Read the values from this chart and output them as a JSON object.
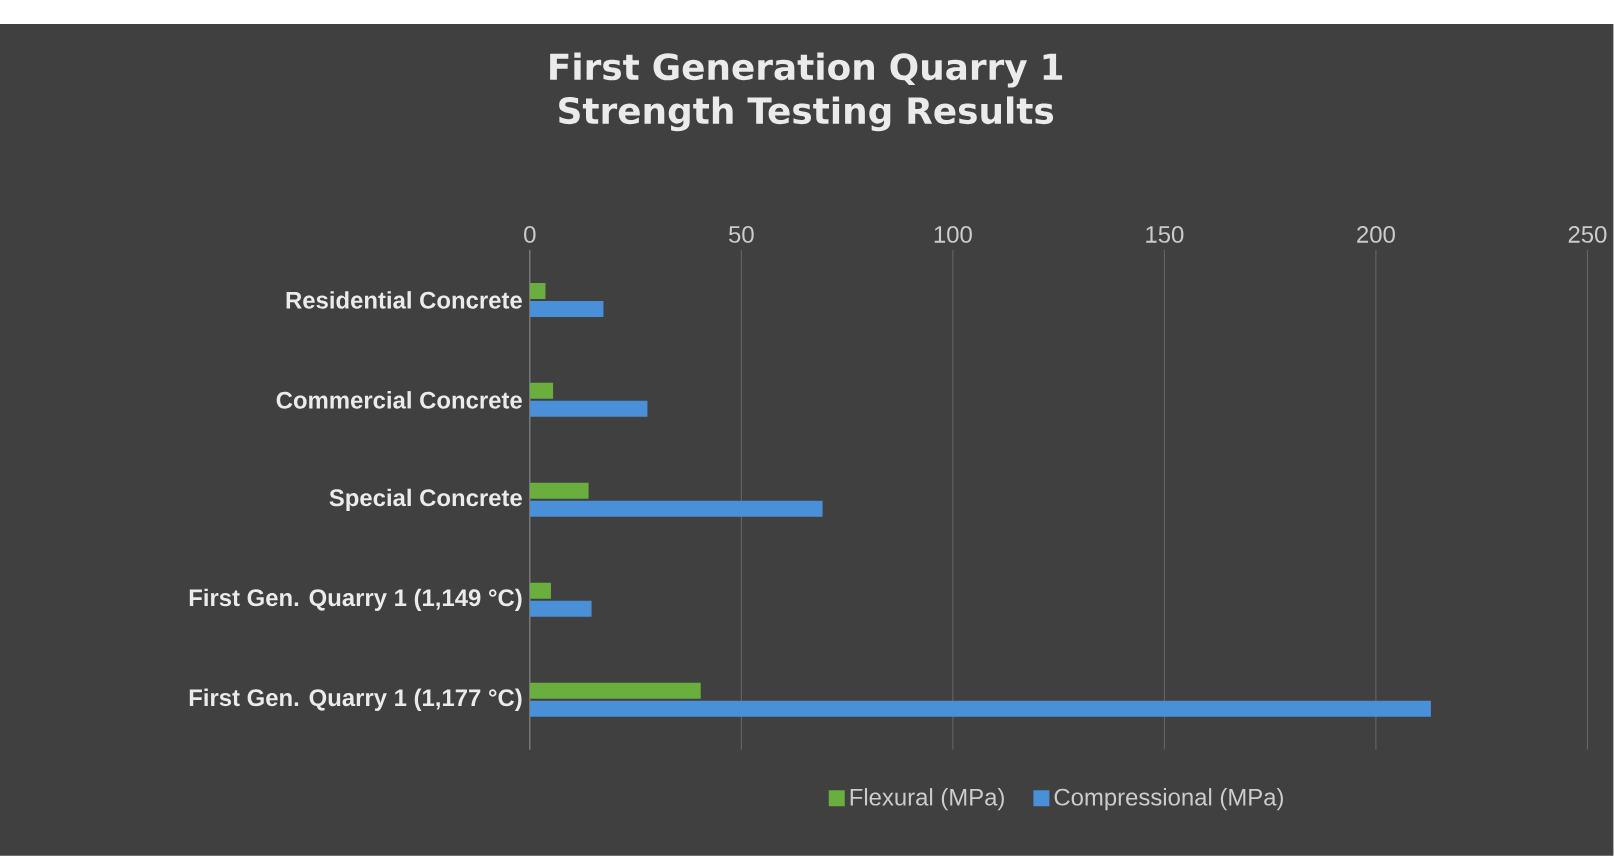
{
  "chart_data": {
    "type": "bar",
    "orientation": "horizontal",
    "title": "First Generation Quarry 1 Strength Testing Results",
    "categories": [
      "Residential Concrete",
      "Commercial Concrete",
      "Special Concrete",
      "First Gen. Quarry 1 (1,149 °C)",
      "First Gen. Quarry 1 (1,177 °C)"
    ],
    "series": [
      {
        "name": "Flexural (MPa)",
        "color": "#6aae3e",
        "values": [
          3.7,
          5.5,
          13.9,
          5,
          40.4
        ]
      },
      {
        "name": "Compressional (MPa)",
        "color": "#4a90d9",
        "values": [
          17.4,
          27.8,
          69.2,
          14.6,
          213
        ]
      }
    ],
    "xlim": [
      0,
      250
    ],
    "xticks": [
      0,
      50,
      100,
      150,
      200,
      250
    ],
    "grid": "x",
    "legend": "bottom"
  }
}
